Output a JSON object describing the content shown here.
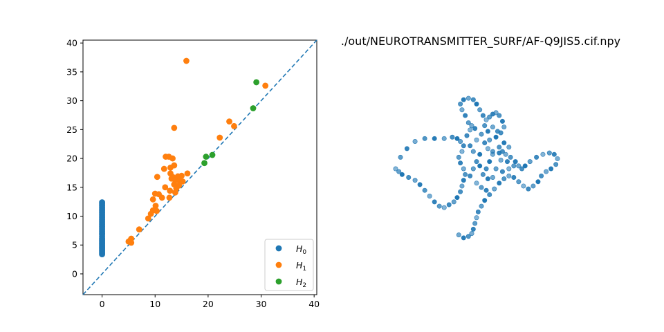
{
  "colors": {
    "h0": "#1f77b4",
    "h1": "#ff7f0e",
    "h2": "#2ca02c",
    "diagonal": "#1f77b4"
  },
  "chart_data": [
    {
      "type": "scatter",
      "title": "",
      "xlabel": "",
      "ylabel": "",
      "xlim": [
        -3.6,
        40.5
      ],
      "ylim": [
        -3.6,
        40.5
      ],
      "xticks": [
        "0",
        "10",
        "20",
        "30",
        "40"
      ],
      "yticks": [
        "0",
        "5",
        "10",
        "15",
        "20",
        "25",
        "30",
        "35",
        "40"
      ],
      "grid": false,
      "legend_position": "lower-right",
      "diagonal": "dashed y = x",
      "series": [
        {
          "name": "H0",
          "name_subscript": "0",
          "name_base": "H",
          "points": [
            [
              0,
              3.4
            ],
            [
              0,
              3.6
            ],
            [
              0,
              3.8
            ],
            [
              0,
              4.0
            ],
            [
              0,
              4.2
            ],
            [
              0,
              4.4
            ],
            [
              0,
              4.6
            ],
            [
              0,
              4.8
            ],
            [
              0,
              5.0
            ],
            [
              0,
              5.2
            ],
            [
              0,
              5.4
            ],
            [
              0,
              5.6
            ],
            [
              0,
              5.8
            ],
            [
              0,
              6.0
            ],
            [
              0,
              6.2
            ],
            [
              0,
              6.5
            ],
            [
              0,
              6.8
            ],
            [
              0,
              7.0
            ],
            [
              0,
              7.3
            ],
            [
              0,
              7.6
            ],
            [
              0,
              7.9
            ],
            [
              0,
              8.2
            ],
            [
              0,
              8.5
            ],
            [
              0,
              8.8
            ],
            [
              0,
              9.1
            ],
            [
              0,
              9.4
            ],
            [
              0,
              9.7
            ],
            [
              0,
              10.0
            ],
            [
              0,
              10.3
            ],
            [
              0,
              10.6
            ],
            [
              0,
              10.9
            ],
            [
              0,
              11.2
            ],
            [
              0,
              11.5
            ],
            [
              0,
              11.8
            ],
            [
              0,
              12.1
            ],
            [
              0,
              12.4
            ]
          ]
        },
        {
          "name": "H1",
          "name_subscript": "1",
          "name_base": "H",
          "points": [
            [
              15.9,
              36.9
            ],
            [
              30.8,
              32.6
            ],
            [
              24.0,
              26.4
            ],
            [
              24.9,
              25.6
            ],
            [
              13.6,
              25.3
            ],
            [
              22.2,
              23.6
            ],
            [
              12.0,
              20.3
            ],
            [
              12.6,
              20.3
            ],
            [
              13.3,
              20.0
            ],
            [
              10.4,
              16.8
            ],
            [
              11.7,
              18.2
            ],
            [
              12.9,
              18.4
            ],
            [
              13.6,
              18.8
            ],
            [
              12.9,
              17.4
            ],
            [
              13.3,
              16.8
            ],
            [
              14.3,
              16.9
            ],
            [
              15.0,
              17.0
            ],
            [
              16.1,
              17.4
            ],
            [
              13.1,
              16.5
            ],
            [
              13.8,
              16.2
            ],
            [
              14.6,
              16.1
            ],
            [
              13.6,
              15.5
            ],
            [
              15.2,
              16.0
            ],
            [
              14.5,
              15.3
            ],
            [
              14.0,
              14.8
            ],
            [
              11.9,
              15.0
            ],
            [
              12.8,
              14.4
            ],
            [
              13.8,
              14.1
            ],
            [
              10.0,
              13.9
            ],
            [
              10.7,
              13.8
            ],
            [
              11.3,
              13.2
            ],
            [
              12.7,
              13.2
            ],
            [
              9.6,
              12.9
            ],
            [
              10.1,
              11.8
            ],
            [
              9.6,
              11.0
            ],
            [
              10.3,
              10.9
            ],
            [
              9.2,
              10.4
            ],
            [
              8.7,
              9.6
            ],
            [
              7.0,
              7.7
            ],
            [
              5.5,
              6.1
            ],
            [
              5.0,
              5.6
            ],
            [
              5.5,
              5.4
            ],
            [
              5.3,
              5.8
            ]
          ]
        },
        {
          "name": "H2",
          "name_subscript": "2",
          "name_base": "H",
          "points": [
            [
              29.1,
              33.2
            ],
            [
              28.5,
              28.7
            ],
            [
              19.6,
              20.3
            ],
            [
              20.8,
              20.6
            ],
            [
              19.3,
              19.2
            ]
          ]
        }
      ]
    },
    {
      "type": "scatter",
      "title": "./out/NEUROTRANSMITTER_SURF/AF-Q9JIS5.cif.npy",
      "xlabel": "",
      "ylabel": "",
      "axes_visible": false,
      "note_3d": "3D point cloud projection",
      "series": [
        {
          "points": [
            [
              0.0,
              0.5
            ],
            [
              0.03,
              0.58
            ],
            [
              0.07,
              0.64
            ],
            [
              0.12,
              0.69
            ],
            [
              0.18,
              0.71
            ],
            [
              0.24,
              0.71
            ],
            [
              0.3,
              0.71
            ],
            [
              0.35,
              0.72
            ],
            [
              0.38,
              0.71
            ],
            [
              0.4,
              0.69
            ],
            [
              0.42,
              0.66
            ],
            [
              0.41,
              0.62
            ],
            [
              0.39,
              0.58
            ],
            [
              0.4,
              0.54
            ],
            [
              0.42,
              0.5
            ],
            [
              0.43,
              0.46
            ],
            [
              0.42,
              0.42
            ],
            [
              0.41,
              0.38
            ],
            [
              0.4,
              0.34
            ],
            [
              0.38,
              0.3
            ],
            [
              0.36,
              0.27
            ],
            [
              0.33,
              0.25
            ],
            [
              0.3,
              0.23
            ],
            [
              0.27,
              0.24
            ],
            [
              0.24,
              0.27
            ],
            [
              0.21,
              0.31
            ],
            [
              0.18,
              0.35
            ],
            [
              0.15,
              0.39
            ],
            [
              0.12,
              0.42
            ],
            [
              0.08,
              0.44
            ],
            [
              0.04,
              0.46
            ],
            [
              0.02,
              0.48
            ],
            [
              0.44,
              0.73
            ],
            [
              0.46,
              0.77
            ],
            [
              0.45,
              0.82
            ],
            [
              0.43,
              0.87
            ],
            [
              0.41,
              0.91
            ],
            [
              0.4,
              0.95
            ],
            [
              0.42,
              0.98
            ],
            [
              0.45,
              0.99
            ],
            [
              0.48,
              0.98
            ],
            [
              0.5,
              0.95
            ],
            [
              0.52,
              0.91
            ],
            [
              0.54,
              0.87
            ],
            [
              0.56,
              0.84
            ],
            [
              0.58,
              0.86
            ],
            [
              0.6,
              0.88
            ],
            [
              0.62,
              0.89
            ],
            [
              0.64,
              0.87
            ],
            [
              0.66,
              0.83
            ],
            [
              0.67,
              0.79
            ],
            [
              0.65,
              0.75
            ],
            [
              0.62,
              0.72
            ],
            [
              0.58,
              0.7
            ],
            [
              0.55,
              0.68
            ],
            [
              0.57,
              0.64
            ],
            [
              0.6,
              0.62
            ],
            [
              0.64,
              0.61
            ],
            [
              0.68,
              0.6
            ],
            [
              0.71,
              0.58
            ],
            [
              0.74,
              0.55
            ],
            [
              0.76,
              0.52
            ],
            [
              0.78,
              0.5
            ],
            [
              0.8,
              0.52
            ],
            [
              0.83,
              0.55
            ],
            [
              0.87,
              0.58
            ],
            [
              0.91,
              0.6
            ],
            [
              0.95,
              0.61
            ],
            [
              0.98,
              0.6
            ],
            [
              1.0,
              0.57
            ],
            [
              0.99,
              0.53
            ],
            [
              0.96,
              0.5
            ],
            [
              0.93,
              0.48
            ],
            [
              0.9,
              0.45
            ],
            [
              0.88,
              0.41
            ],
            [
              0.85,
              0.38
            ],
            [
              0.82,
              0.36
            ],
            [
              0.79,
              0.38
            ],
            [
              0.76,
              0.41
            ],
            [
              0.73,
              0.44
            ],
            [
              0.7,
              0.45
            ],
            [
              0.67,
              0.43
            ],
            [
              0.64,
              0.4
            ],
            [
              0.61,
              0.36
            ],
            [
              0.58,
              0.32
            ],
            [
              0.55,
              0.28
            ],
            [
              0.53,
              0.24
            ],
            [
              0.51,
              0.2
            ],
            [
              0.5,
              0.16
            ],
            [
              0.49,
              0.12
            ],
            [
              0.48,
              0.08
            ],
            [
              0.47,
              0.05
            ],
            [
              0.45,
              0.03
            ],
            [
              0.42,
              0.02
            ],
            [
              0.39,
              0.04
            ],
            [
              0.5,
              0.55
            ],
            [
              0.52,
              0.6
            ],
            [
              0.48,
              0.62
            ],
            [
              0.46,
              0.66
            ],
            [
              0.5,
              0.7
            ],
            [
              0.53,
              0.74
            ],
            [
              0.49,
              0.78
            ],
            [
              0.47,
              0.8
            ],
            [
              0.55,
              0.8
            ],
            [
              0.57,
              0.76
            ],
            [
              0.6,
              0.79
            ],
            [
              0.63,
              0.76
            ],
            [
              0.58,
              0.55
            ],
            [
              0.62,
              0.5
            ],
            [
              0.66,
              0.48
            ],
            [
              0.7,
              0.5
            ],
            [
              0.73,
              0.52
            ],
            [
              0.69,
              0.55
            ],
            [
              0.65,
              0.56
            ],
            [
              0.54,
              0.46
            ],
            [
              0.57,
              0.43
            ],
            [
              0.6,
              0.44
            ],
            [
              0.56,
              0.5
            ],
            [
              0.52,
              0.52
            ],
            [
              0.48,
              0.5
            ],
            [
              0.46,
              0.45
            ],
            [
              0.5,
              0.4
            ],
            [
              0.53,
              0.37
            ],
            [
              0.56,
              0.35
            ],
            [
              0.6,
              0.6
            ],
            [
              0.64,
              0.65
            ],
            [
              0.67,
              0.68
            ],
            [
              0.7,
              0.65
            ],
            [
              0.66,
              0.62
            ]
          ]
        }
      ]
    }
  ]
}
